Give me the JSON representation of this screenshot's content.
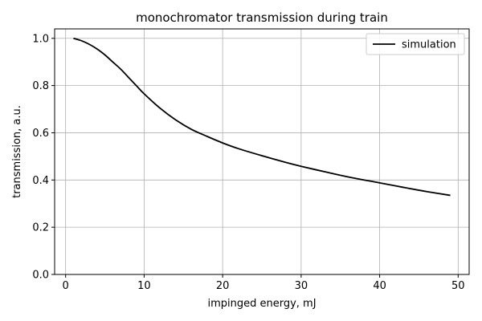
{
  "chart_data": {
    "type": "line",
    "title": "monochromator transmission during train",
    "xlabel": "impinged energy, mJ",
    "ylabel": "transmission, a.u.",
    "xlim": [
      -1.4,
      51.4
    ],
    "ylim": [
      0.0,
      1.04
    ],
    "xticks": [
      0,
      10,
      20,
      30,
      40,
      50
    ],
    "yticks": [
      0.0,
      0.2,
      0.4,
      0.6,
      0.8,
      1.0
    ],
    "xtick_labels": [
      "0",
      "10",
      "20",
      "30",
      "40",
      "50"
    ],
    "ytick_labels": [
      "0.0",
      "0.2",
      "0.4",
      "0.6",
      "0.8",
      "1.0"
    ],
    "grid": true,
    "legend_position": "top-right",
    "series": [
      {
        "name": "simulation",
        "color": "#000000",
        "x": [
          1,
          2,
          3,
          4,
          5,
          6,
          7,
          8,
          9,
          10,
          12,
          14,
          16,
          18,
          20,
          22,
          25,
          28,
          30,
          33,
          36,
          40,
          43,
          46,
          49
        ],
        "y": [
          1.0,
          0.99,
          0.975,
          0.955,
          0.93,
          0.9,
          0.87,
          0.835,
          0.8,
          0.765,
          0.705,
          0.655,
          0.615,
          0.585,
          0.557,
          0.533,
          0.503,
          0.475,
          0.458,
          0.435,
          0.413,
          0.388,
          0.369,
          0.351,
          0.335
        ]
      }
    ]
  }
}
